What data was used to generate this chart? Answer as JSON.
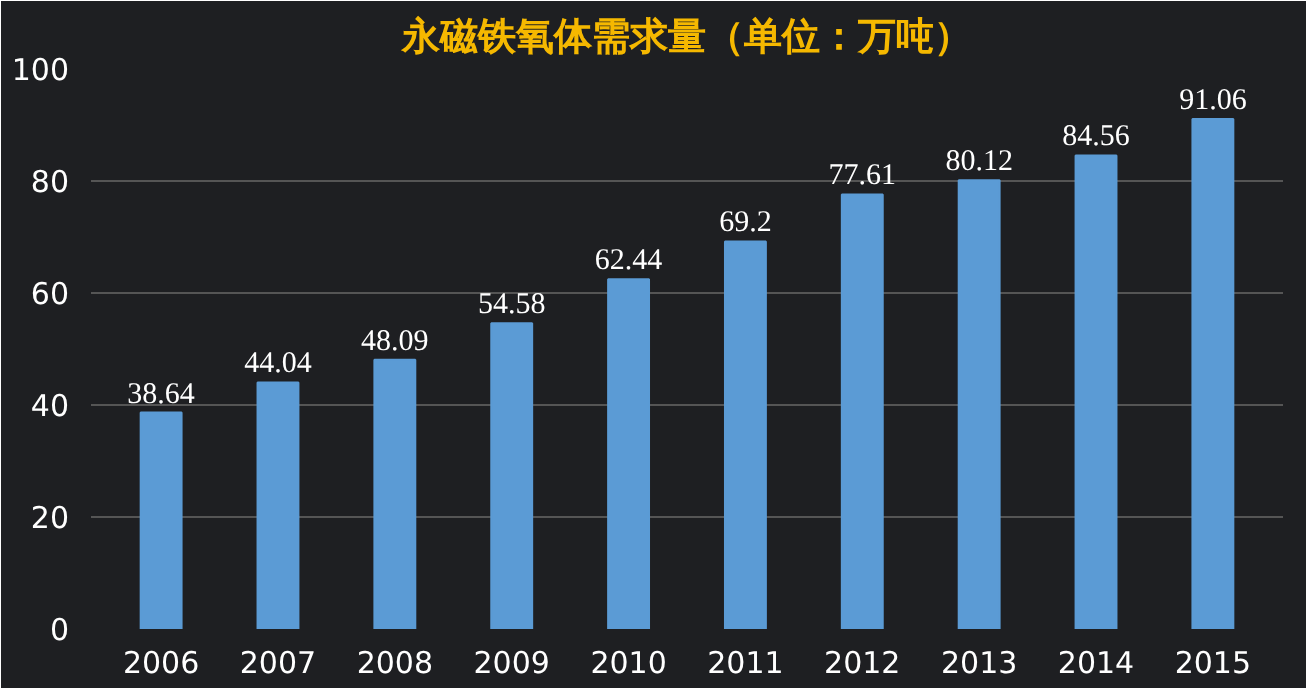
{
  "chart_data": {
    "type": "bar",
    "title": "永磁铁氧体需求量（单位：万吨）",
    "categories": [
      "2006",
      "2007",
      "2008",
      "2009",
      "2010",
      "2011",
      "2012",
      "2013",
      "2014",
      "2015"
    ],
    "values": [
      38.64,
      44.04,
      48.09,
      54.58,
      62.44,
      69.2,
      77.61,
      80.12,
      84.56,
      91.06
    ],
    "color": "#5b9bd5",
    "ylim": [
      0,
      100
    ],
    "yticks": [
      0,
      20,
      40,
      60,
      80,
      100
    ],
    "grid": "y",
    "data_labels": true
  }
}
